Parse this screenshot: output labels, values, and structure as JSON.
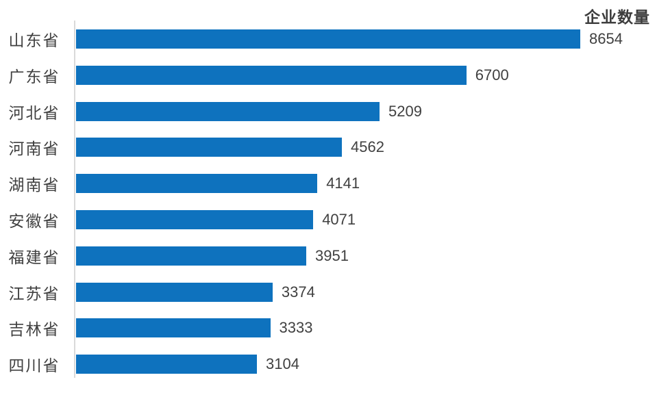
{
  "chart_data": {
    "type": "bar",
    "orientation": "horizontal",
    "title": "企业数量",
    "categories": [
      "山东省",
      "广东省",
      "河北省",
      "河南省",
      "湖南省",
      "安徽省",
      "福建省",
      "江苏省",
      "吉林省",
      "四川省"
    ],
    "values": [
      8654,
      6700,
      5209,
      4562,
      4141,
      4071,
      3951,
      3374,
      3333,
      3104
    ],
    "xlabel": "",
    "ylabel": "",
    "xlim": [
      0,
      8654
    ],
    "grid": false,
    "data_labels": true,
    "legend_position": "top-right",
    "bar_color": "#0e72be",
    "axis_line_color": "#d9d9d9",
    "text_color": "#404040",
    "title_color": "#3d3d3d"
  }
}
